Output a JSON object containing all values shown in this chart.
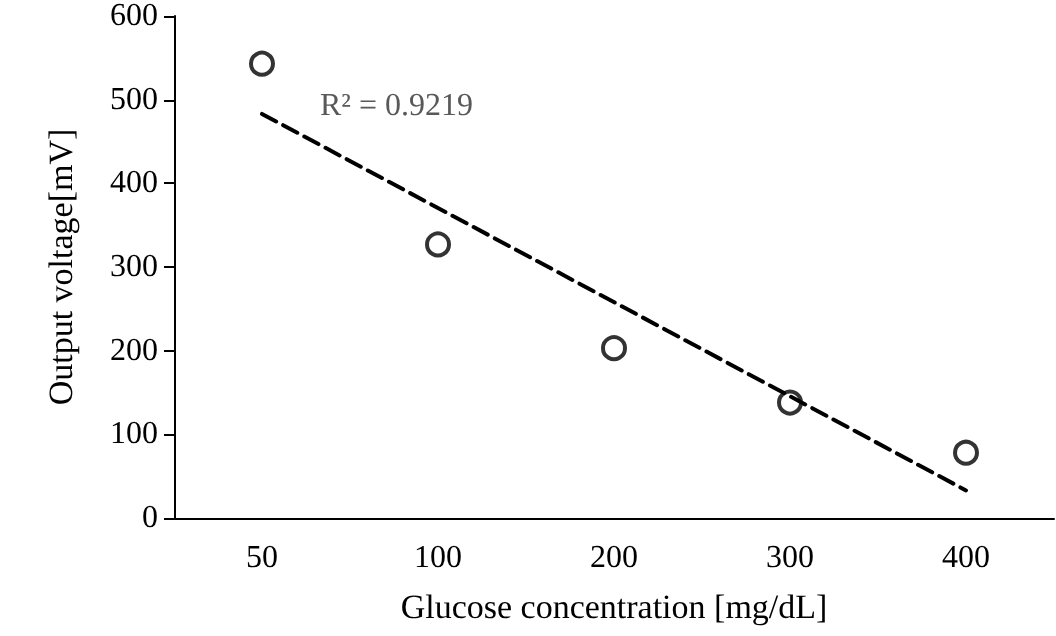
{
  "chart_data": {
    "type": "scatter",
    "xlabel": "Glucose concentration [mg/dL]",
    "ylabel": "Output voltage[mV]",
    "categories": [
      "50",
      "100",
      "200",
      "300",
      "400"
    ],
    "series": [
      {
        "type": "scatter",
        "color": "#000000",
        "values": [
          543,
          327,
          203,
          138,
          78
        ],
        "marker": "circle"
      },
      {
        "type": "line",
        "color": "#000000",
        "x": [
          "50",
          "400"
        ],
        "values": [
          483,
          33
        ],
        "line_style": "dashed",
        "marker": "none"
      }
    ],
    "annotations": [
      "R² = 0.9219"
    ],
    "ylim": [
      0,
      600
    ],
    "yticks": [
      0,
      100,
      200,
      300,
      400,
      500,
      600
    ],
    "grid": false
  }
}
